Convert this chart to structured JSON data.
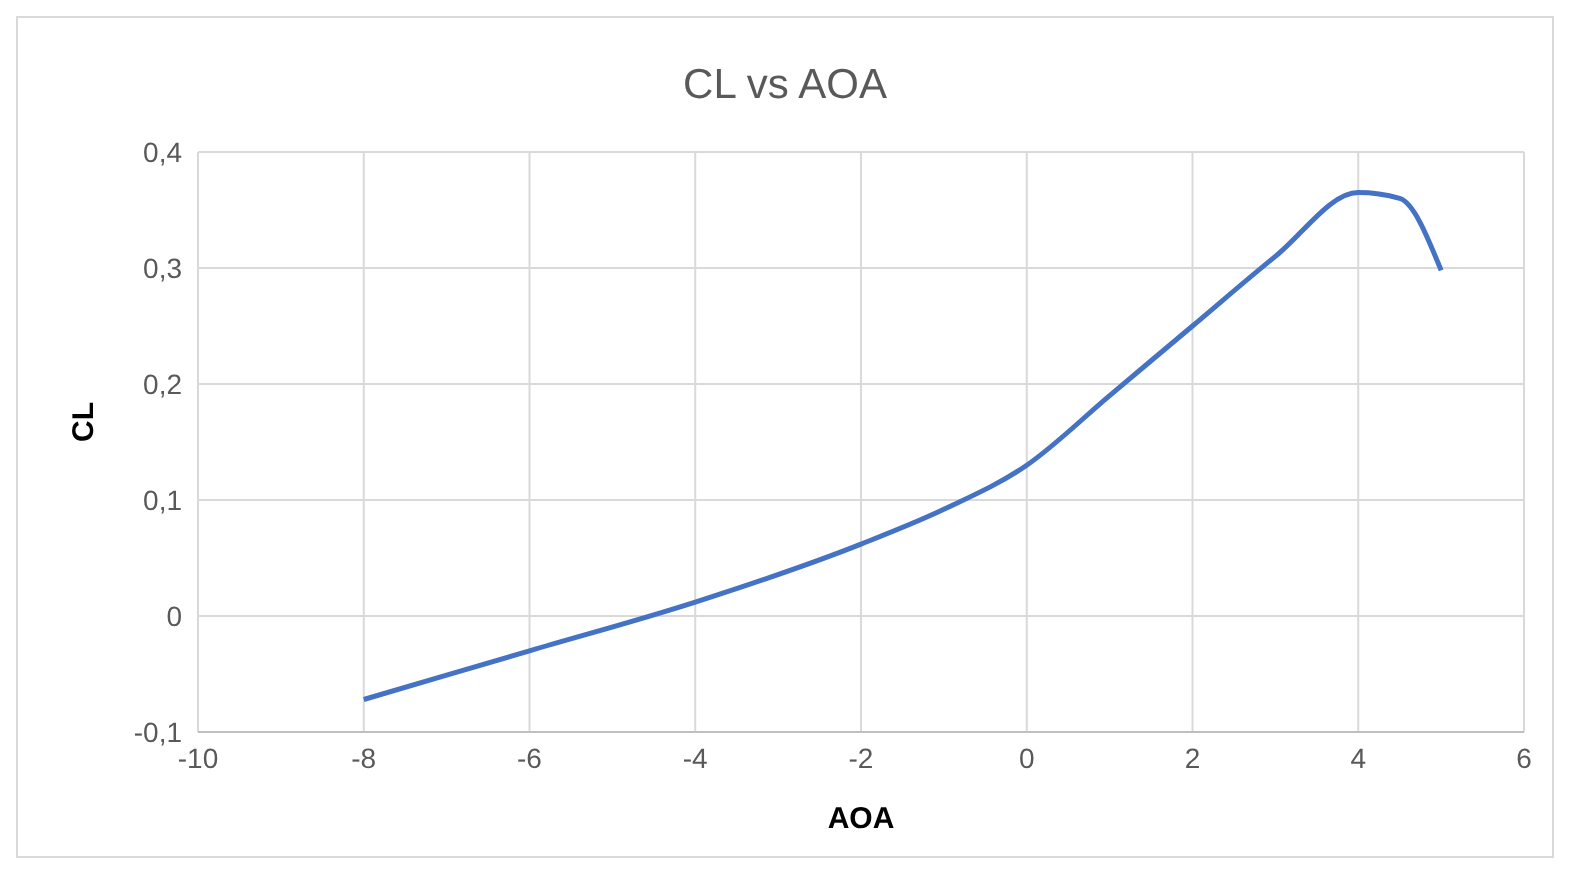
{
  "chart_data": {
    "type": "line",
    "title": "CL vs AOA",
    "xlabel": "AOA",
    "ylabel": "CL",
    "x": [
      -8,
      -6,
      -4,
      -2,
      -1,
      0,
      1,
      2,
      3,
      4,
      4.5,
      5
    ],
    "series": [
      {
        "color": "#4472c4",
        "values": [
          -0.072,
          -0.03,
          0.012,
          0.062,
          0.092,
          0.13,
          0.19,
          0.25,
          0.31,
          0.365,
          0.36,
          0.298
        ]
      }
    ],
    "xlim": [
      -10,
      6
    ],
    "xticks": [
      -10,
      -8,
      -6,
      -4,
      -2,
      0,
      2,
      4,
      6
    ],
    "ylim": [
      -0.1,
      0.4
    ],
    "yticks": [
      {
        "value": -0.1,
        "label": "-0,1"
      },
      0,
      {
        "value": 0.1,
        "label": "0,1"
      },
      {
        "value": 0.2,
        "label": "0,2"
      },
      {
        "value": 0.3,
        "label": "0,3"
      },
      {
        "value": 0.4,
        "label": "0,4"
      }
    ],
    "grid": true,
    "legend": false,
    "marker": "none",
    "line_style": "solid"
  }
}
